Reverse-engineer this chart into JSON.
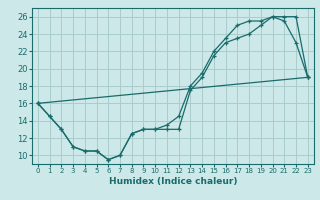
{
  "title": "",
  "xlabel": "Humidex (Indice chaleur)",
  "ylabel": "",
  "bg_color": "#cce8e8",
  "grid_color": "#aacccc",
  "line_color": "#1a6b6b",
  "xlim": [
    -0.5,
    23.5
  ],
  "ylim": [
    9,
    27
  ],
  "xticks": [
    0,
    1,
    2,
    3,
    4,
    5,
    6,
    7,
    8,
    9,
    10,
    11,
    12,
    13,
    14,
    15,
    16,
    17,
    18,
    19,
    20,
    21,
    22,
    23
  ],
  "yticks": [
    10,
    12,
    14,
    16,
    18,
    20,
    22,
    24,
    26
  ],
  "line1_x": [
    0,
    1,
    2,
    3,
    4,
    5,
    6,
    7,
    8,
    9,
    10,
    11,
    12,
    13,
    14,
    15,
    16,
    17,
    18,
    19,
    20,
    21,
    22,
    23
  ],
  "line1_y": [
    16,
    14.5,
    13,
    11,
    10.5,
    10.5,
    9.5,
    10,
    12.5,
    13,
    13,
    13,
    13,
    17.5,
    19,
    21.5,
    23,
    23.5,
    24,
    25,
    26,
    26,
    26,
    19
  ],
  "line2_x": [
    0,
    1,
    2,
    3,
    4,
    5,
    6,
    7,
    8,
    9,
    10,
    11,
    12,
    13,
    14,
    15,
    16,
    17,
    18,
    19,
    20,
    21,
    22,
    23
  ],
  "line2_y": [
    16,
    14.5,
    13,
    11,
    10.5,
    10.5,
    9.5,
    10,
    12.5,
    13,
    13,
    13.5,
    14.5,
    18,
    19.5,
    22,
    23.5,
    25,
    25.5,
    25.5,
    26,
    25.5,
    23,
    19
  ],
  "line3_x": [
    0,
    23
  ],
  "line3_y": [
    16,
    19
  ]
}
